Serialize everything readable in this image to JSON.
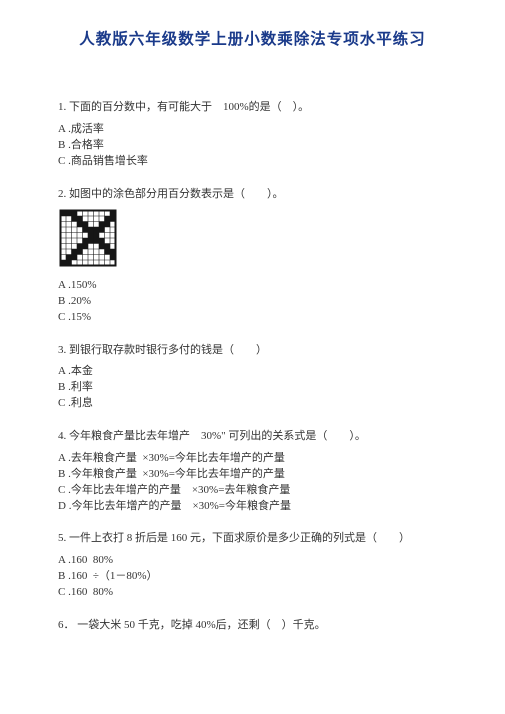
{
  "title": "人教版六年级数学上册小数乘除法专项水平练习",
  "title_color": "#1a3a8a",
  "body_color": "#333333",
  "background_color": "#ffffff",
  "font_family": "SimSun",
  "base_fontsize": 11,
  "title_fontsize": 15.5,
  "questions": [
    {
      "number": "1.",
      "stem": "下面的百分数中，有可能大于　100%的是（　）。",
      "options": [
        "A .成活率",
        "B .合格率",
        "C .商品销售增长率"
      ]
    },
    {
      "number": "2.",
      "stem": "如图中的涂色部分用百分数表示是（　　）。",
      "has_image": true,
      "grid": {
        "rows": 10,
        "cols": 10,
        "cell": 5.5,
        "border_color": "#161616",
        "grid_color": "#161616",
        "fill_color": "#161616",
        "bg": "#ffffff",
        "filled_cells": [
          [
            0,
            0
          ],
          [
            0,
            1
          ],
          [
            0,
            2
          ],
          [
            0,
            9
          ],
          [
            1,
            2
          ],
          [
            1,
            3
          ],
          [
            1,
            8
          ],
          [
            1,
            9
          ],
          [
            2,
            3
          ],
          [
            2,
            4
          ],
          [
            2,
            7
          ],
          [
            2,
            8
          ],
          [
            3,
            4
          ],
          [
            3,
            5
          ],
          [
            3,
            6
          ],
          [
            3,
            7
          ],
          [
            4,
            5
          ],
          [
            4,
            6
          ],
          [
            5,
            4
          ],
          [
            5,
            5
          ],
          [
            5,
            6
          ],
          [
            5,
            7
          ],
          [
            6,
            3
          ],
          [
            6,
            4
          ],
          [
            6,
            7
          ],
          [
            6,
            8
          ],
          [
            7,
            2
          ],
          [
            7,
            3
          ],
          [
            7,
            8
          ],
          [
            7,
            9
          ],
          [
            8,
            1
          ],
          [
            8,
            2
          ],
          [
            8,
            9
          ],
          [
            9,
            0
          ],
          [
            9,
            1
          ]
        ]
      },
      "options": [
        "A .150%",
        "B .20%",
        "C .15%"
      ]
    },
    {
      "number": "3.",
      "stem": "到银行取存款时银行多付的钱是（　　）",
      "options": [
        "A .本金",
        "B .利率",
        "C .利息"
      ]
    },
    {
      "number": "4.",
      "stem": "今年粮食产量比去年增产　30%\" 可列出的关系式是（　　）。",
      "options": [
        "A .去年粮食产量  ×30%=今年比去年增产的产量",
        "B .今年粮食产量  ×30%=今年比去年增产的产量",
        "C .今年比去年增产的产量　×30%=去年粮食产量",
        "D .今年比去年增产的产量　×30%=今年粮食产量"
      ]
    },
    {
      "number": "5.",
      "stem": "一件上衣打  8 折后是  160 元，下面求原价是多少正确的列式是（　　）",
      "options": [
        "A .160  80%",
        "B .160  ÷（1－80%）",
        "C .160  80%"
      ]
    },
    {
      "number": "6．",
      "stem": "一袋大米  50 千克，吃掉  40%后，还剩（　）千克。",
      "options": []
    }
  ]
}
